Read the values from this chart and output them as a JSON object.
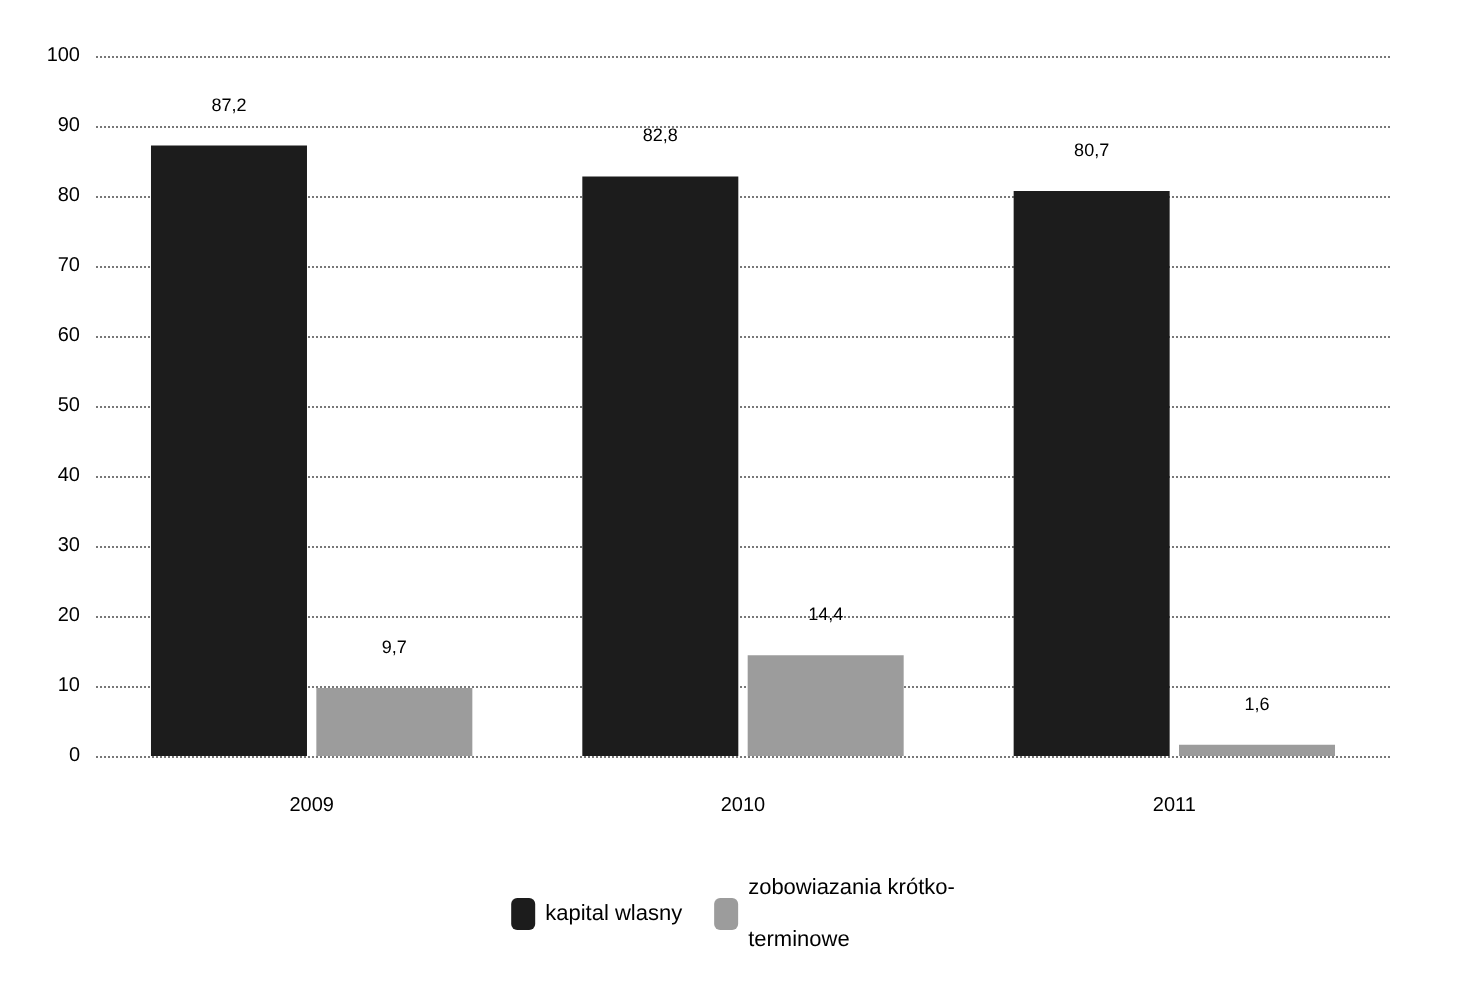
{
  "chart_data": {
    "type": "bar",
    "categories": [
      "2009",
      "2010",
      "2011"
    ],
    "series": [
      {
        "name": "kapital wlasny",
        "color": "#1c1c1c",
        "values": [
          87.2,
          82.8,
          80.7
        ],
        "value_labels": [
          "87,2",
          "82,8",
          "80,7"
        ]
      },
      {
        "name": "zobowiazania krótko-\nterminowe",
        "color": "#9c9c9c",
        "values": [
          9.7,
          14.4,
          1.6
        ],
        "value_labels": [
          "9,7",
          "14,4",
          "1,6"
        ]
      }
    ],
    "ylim": [
      0,
      100
    ],
    "yticks": [
      0,
      10,
      20,
      30,
      40,
      50,
      60,
      70,
      80,
      90,
      100
    ],
    "grid": "y",
    "legend": "bottom"
  }
}
